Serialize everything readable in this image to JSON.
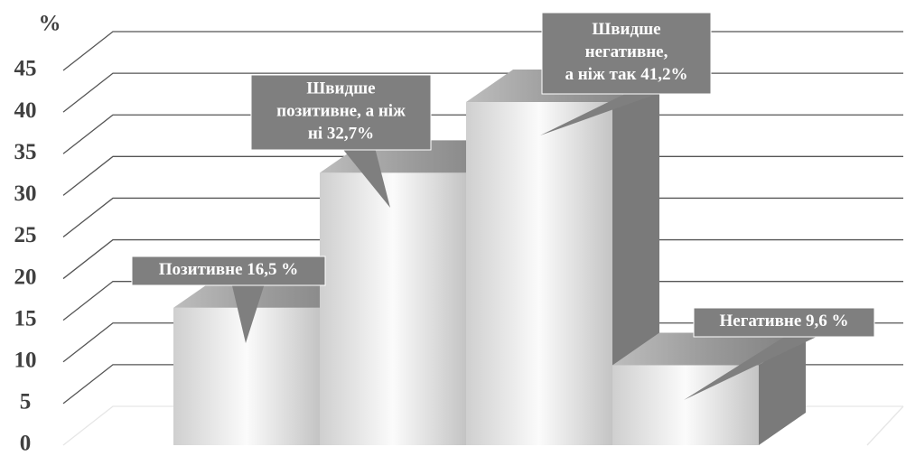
{
  "chart_data": {
    "type": "bar3d",
    "y_label": "%",
    "categories": [
      null,
      null,
      null,
      null
    ],
    "values": [
      16.5,
      32.7,
      41.2,
      9.6
    ],
    "value_labels": [
      "Позитивне 16,5 %",
      "Швидше\nпозитивне, а ніж\nні 32,7%",
      "Швидше\nнегативне,\nа ніж так 41,2%",
      "Негативне 9,6 %"
    ],
    "color": "#e6e6e6",
    "label_color": "#7f7f7f",
    "ylim": [
      0,
      45
    ],
    "yticks": [
      0,
      5,
      10,
      15,
      20,
      25,
      30,
      35,
      40,
      45
    ],
    "grid": true
  }
}
